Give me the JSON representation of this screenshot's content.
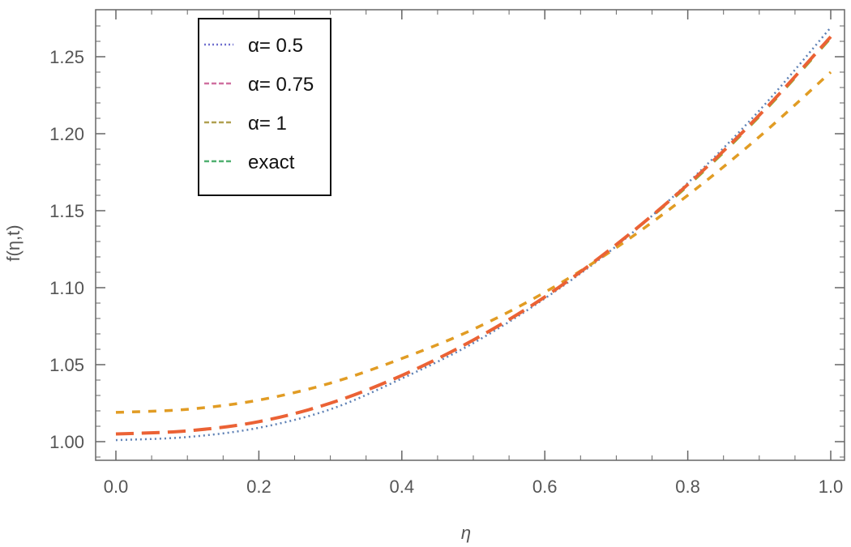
{
  "chart_data": {
    "type": "line",
    "title": "",
    "xlabel": "η",
    "ylabel": "f(η,t)",
    "xlim": [
      0,
      1
    ],
    "ylim": [
      1.0,
      1.25
    ],
    "x_ticks": [
      "0.0",
      "0.2",
      "0.4",
      "0.6",
      "0.8",
      "1.0"
    ],
    "y_ticks": [
      "1.00",
      "1.05",
      "1.10",
      "1.15",
      "1.20",
      "1.25"
    ],
    "grid": false,
    "legend_placement": "top-left",
    "x": [
      0,
      0.1,
      0.2,
      0.3,
      0.4,
      0.5,
      0.6,
      0.7,
      0.8,
      0.9,
      1.0
    ],
    "series": [
      {
        "name": "α= 0.5",
        "color": "#5E81B5",
        "legend_color": "#6F6FCF",
        "dash": "2,4",
        "values": [
          1.001,
          1.003,
          1.009,
          1.021,
          1.041,
          1.064,
          1.093,
          1.127,
          1.168,
          1.215,
          1.269
        ]
      },
      {
        "name": "α= 0.75",
        "color": "#EB6235",
        "legend_color": "#D070A0",
        "dash": "22,10",
        "values": [
          1.005,
          1.007,
          1.013,
          1.025,
          1.043,
          1.066,
          1.094,
          1.128,
          1.167,
          1.212,
          1.263
        ]
      },
      {
        "name": "α= 1",
        "color": "#E19C24",
        "legend_color": "#B0A050",
        "dash": "10,10",
        "values": [
          1.019,
          1.021,
          1.027,
          1.038,
          1.054,
          1.073,
          1.097,
          1.126,
          1.16,
          1.198,
          1.24
        ]
      },
      {
        "name": "exact",
        "color": "#8FB032",
        "legend_color": "#50B070",
        "dash": "14,18",
        "values": [
          1.005,
          1.007,
          1.013,
          1.025,
          1.043,
          1.066,
          1.094,
          1.128,
          1.166,
          1.211,
          1.262
        ]
      }
    ]
  }
}
